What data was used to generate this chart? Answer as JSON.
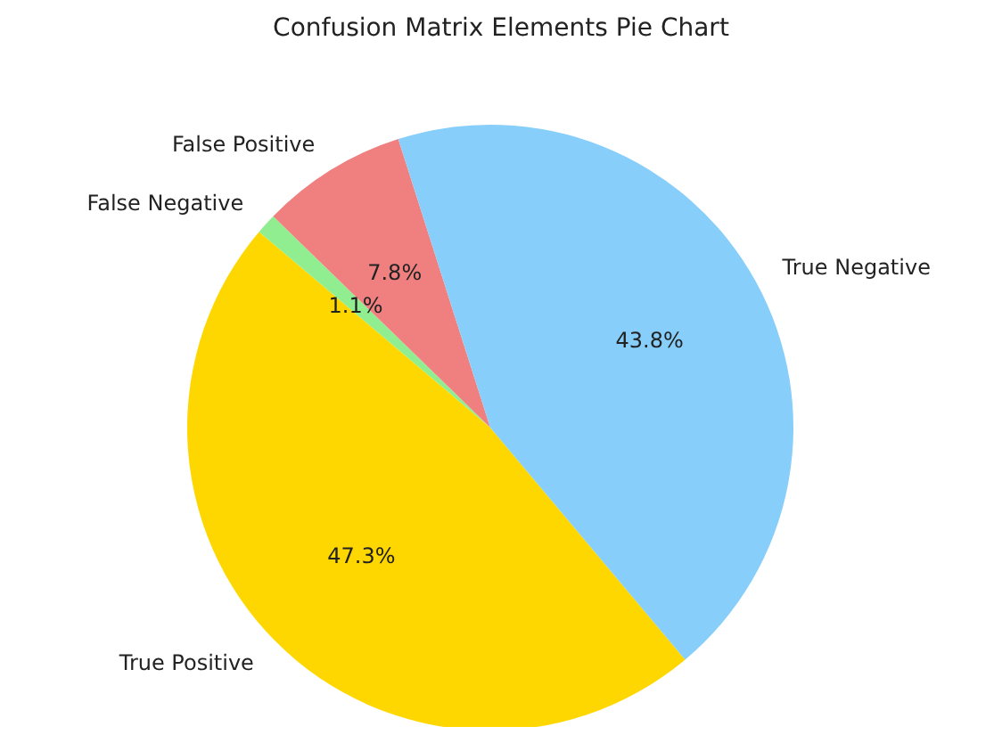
{
  "chart_data": {
    "type": "pie",
    "title": "Confusion Matrix Elements Pie Chart",
    "categories": [
      "True Positive",
      "False Negative",
      "False Positive",
      "True Negative"
    ],
    "values": [
      47.3,
      1.1,
      7.8,
      43.8
    ],
    "value_labels": [
      "47.3%",
      "1.1%",
      "7.8%",
      "43.8%"
    ],
    "colors": [
      "#ffd700",
      "#90ee90",
      "#f08080",
      "#87cefa"
    ],
    "legend": false
  }
}
